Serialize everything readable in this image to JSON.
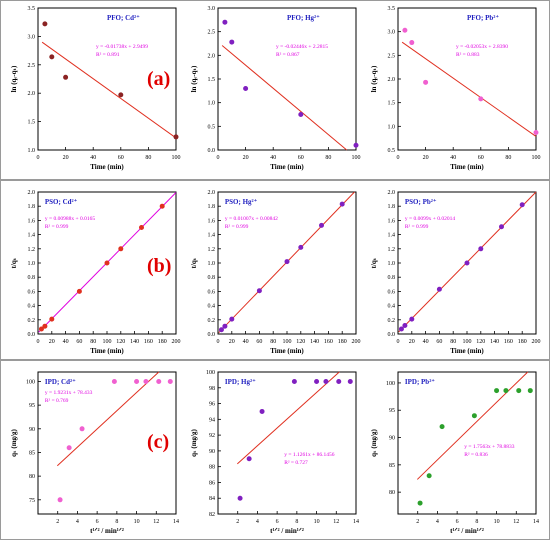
{
  "rows": [
    {
      "label": "(a)"
    },
    {
      "label": "(b)"
    },
    {
      "label": "(c)"
    }
  ],
  "chart_data": [
    {
      "type": "scatter",
      "row": 0,
      "col": 0,
      "title": "PFO; Cd²⁺",
      "xlabel": "Time (min)",
      "ylabel": "ln (qₑ-qₜ)",
      "xlim": [
        0,
        100
      ],
      "ylim": [
        1.0,
        3.5
      ],
      "xticks": [
        0,
        20,
        40,
        60,
        80,
        100
      ],
      "yticks": [
        1.0,
        1.5,
        2.0,
        2.5,
        3.0,
        3.5
      ],
      "x": [
        5,
        10,
        20,
        60,
        100
      ],
      "y": [
        3.22,
        2.64,
        2.28,
        1.97,
        1.23
      ],
      "fit": {
        "slope": -0.01738,
        "intercept": 2.9499
      },
      "equation": "y = -0.01738x + 2.9499",
      "r2": "R² = 0.891",
      "marker_color": "#8b2323",
      "text_color": "#e000e0",
      "fit_color": "#e03020",
      "title_color": "#2020c0"
    },
    {
      "type": "scatter",
      "row": 0,
      "col": 1,
      "title": "PFO; Hg²⁺",
      "xlabel": "Time (min)",
      "ylabel": "ln (qₑ-qₜ)",
      "xlim": [
        0,
        100
      ],
      "ylim": [
        0.0,
        3.0
      ],
      "xticks": [
        0,
        20,
        40,
        60,
        80,
        100
      ],
      "yticks": [
        0.0,
        0.5,
        1.0,
        1.5,
        2.0,
        2.5,
        3.0
      ],
      "x": [
        5,
        10,
        20,
        60,
        100
      ],
      "y": [
        2.7,
        2.28,
        1.3,
        0.75,
        0.1
      ],
      "fit": {
        "slope": -0.02446,
        "intercept": 2.2815
      },
      "equation": "y = -0.02446x + 2.2815",
      "r2": "R² = 0.867",
      "marker_color": "#8020c0",
      "text_color": "#e000e0",
      "fit_color": "#e03020",
      "title_color": "#2020c0"
    },
    {
      "type": "scatter",
      "row": 0,
      "col": 2,
      "title": "PFO; Pb²⁺",
      "xlabel": "Time (min)",
      "ylabel": "ln (qₑ-qₜ)",
      "xlim": [
        0,
        100
      ],
      "ylim": [
        0.5,
        3.5
      ],
      "xticks": [
        0,
        20,
        40,
        60,
        80,
        100
      ],
      "yticks": [
        0.5,
        1.0,
        1.5,
        2.0,
        2.5,
        3.0,
        3.5
      ],
      "x": [
        5,
        10,
        20,
        60,
        100
      ],
      "y": [
        3.03,
        2.77,
        1.93,
        1.58,
        0.87
      ],
      "fit": {
        "slope": -0.02053,
        "intercept": 2.839
      },
      "equation": "y = -0.02053x + 2.8390",
      "r2": "R² = 0.883",
      "marker_color": "#f060d0",
      "text_color": "#e000e0",
      "fit_color": "#e03020",
      "title_color": "#2020c0"
    },
    {
      "type": "scatter",
      "row": 1,
      "col": 0,
      "title": "PSO; Cd²⁺",
      "xlabel": "Time (min)",
      "ylabel": "t/qₜ",
      "xlim": [
        0,
        200
      ],
      "ylim": [
        0.0,
        2.0
      ],
      "xticks": [
        0,
        20,
        40,
        60,
        80,
        100,
        120,
        140,
        160,
        180,
        200
      ],
      "yticks": [
        0.0,
        0.2,
        0.4,
        0.6,
        0.8,
        1.0,
        1.2,
        1.4,
        1.6,
        1.8,
        2.0
      ],
      "x": [
        5,
        10,
        20,
        60,
        100,
        120,
        150,
        180
      ],
      "y": [
        0.07,
        0.11,
        0.21,
        0.6,
        1.0,
        1.2,
        1.5,
        1.8
      ],
      "fit": {
        "slope": 0.00988,
        "intercept": 0.0165
      },
      "equation": "y = 0.00988x + 0.0165",
      "r2": "R² = 0.999",
      "marker_color": "#e03020",
      "text_color": "#e000e0",
      "fit_color": "#e000e0",
      "title_color": "#2020c0"
    },
    {
      "type": "scatter",
      "row": 1,
      "col": 1,
      "title": "PSO; Hg²⁺",
      "xlabel": "Time (min)",
      "ylabel": "t/qₜ",
      "xlim": [
        0,
        200
      ],
      "ylim": [
        0.0,
        2.0
      ],
      "xticks": [
        0,
        20,
        40,
        60,
        80,
        100,
        120,
        140,
        160,
        180,
        200
      ],
      "yticks": [
        0.0,
        0.2,
        0.4,
        0.6,
        0.8,
        1.0,
        1.2,
        1.4,
        1.6,
        1.8,
        2.0
      ],
      "x": [
        5,
        10,
        20,
        60,
        100,
        120,
        150,
        180
      ],
      "y": [
        0.06,
        0.11,
        0.21,
        0.61,
        1.02,
        1.22,
        1.53,
        1.83
      ],
      "fit": {
        "slope": 0.01007,
        "intercept": 0.00842
      },
      "equation": "y = 0.01007x + 0.00842",
      "r2": "R² = 0.999",
      "marker_color": "#8020c0",
      "text_color": "#e000e0",
      "fit_color": "#e03020",
      "title_color": "#2020c0"
    },
    {
      "type": "scatter",
      "row": 1,
      "col": 2,
      "title": "PSO; Pb²⁺",
      "xlabel": "Time (min)",
      "ylabel": "t/qₜ",
      "xlim": [
        0,
        200
      ],
      "ylim": [
        0.0,
        2.0
      ],
      "xticks": [
        0,
        20,
        40,
        60,
        80,
        100,
        120,
        140,
        160,
        180,
        200
      ],
      "yticks": [
        0.0,
        0.2,
        0.4,
        0.6,
        0.8,
        1.0,
        1.2,
        1.4,
        1.6,
        1.8,
        2.0
      ],
      "x": [
        5,
        10,
        20,
        60,
        100,
        120,
        150,
        180
      ],
      "y": [
        0.07,
        0.12,
        0.21,
        0.63,
        1.0,
        1.2,
        1.51,
        1.82
      ],
      "fit": {
        "slope": 0.0099,
        "intercept": 0.02014
      },
      "equation": "y = 0.0099x + 0.02014",
      "r2": "R² = 0.999",
      "marker_color": "#8020c0",
      "text_color": "#e000e0",
      "fit_color": "#e03020",
      "title_color": "#2020c0"
    },
    {
      "type": "scatter",
      "row": 2,
      "col": 0,
      "title": "IPD; Cd²⁺",
      "xlabel": "t¹ᐟ² / min¹ᐟ²",
      "ylabel": "qₜ (mg/g)",
      "xlim": [
        0,
        14
      ],
      "ylim": [
        72,
        102
      ],
      "xticks": [
        2,
        4,
        6,
        8,
        10,
        12,
        14
      ],
      "yticks": [
        75,
        80,
        85,
        90,
        95,
        100
      ],
      "x": [
        2.24,
        3.16,
        4.47,
        7.75,
        10.0,
        10.95,
        12.25,
        13.42
      ],
      "y": [
        75,
        86,
        90,
        100,
        100,
        100,
        100,
        100
      ],
      "fit": {
        "slope": 1.9231,
        "intercept": 78.433
      },
      "equation": "y = 1.9231x + 78.433",
      "r2": "R² = 0.769",
      "marker_color": "#f060d0",
      "text_color": "#e000e0",
      "fit_color": "#e03020",
      "title_color": "#2020c0"
    },
    {
      "type": "scatter",
      "row": 2,
      "col": 1,
      "title": "IPD; Hg²⁺",
      "xlabel": "t¹ᐟ² / min¹ᐟ²",
      "ylabel": "qₜ (mg/g)",
      "xlim": [
        0,
        14
      ],
      "ylim": [
        82,
        100
      ],
      "xticks": [
        2,
        4,
        6,
        8,
        10,
        12,
        14
      ],
      "yticks": [
        82,
        84,
        86,
        88,
        90,
        92,
        94,
        96,
        98,
        100
      ],
      "x": [
        2.24,
        3.16,
        4.47,
        7.75,
        10.0,
        10.95,
        12.25,
        13.42
      ],
      "y": [
        84,
        89,
        95,
        98.8,
        98.8,
        98.8,
        98.8,
        98.8
      ],
      "fit": {
        "slope": 1.1261,
        "intercept": 86.1456
      },
      "equation": "y = 1.1261x + 86.1456",
      "r2": "R² = 0.727",
      "marker_color": "#8020c0",
      "text_color": "#e000e0",
      "fit_color": "#e03020",
      "title_color": "#2020c0"
    },
    {
      "type": "scatter",
      "row": 2,
      "col": 2,
      "title": "IPD; Pb²⁺",
      "xlabel": "t¹ᐟ² / min¹ᐟ²",
      "ylabel": "qₜ (mg/g)",
      "xlim": [
        0,
        14
      ],
      "ylim": [
        76,
        102
      ],
      "xticks": [
        2,
        4,
        6,
        8,
        10,
        12,
        14
      ],
      "yticks": [
        80,
        85,
        90,
        95,
        100
      ],
      "x": [
        2.24,
        3.16,
        4.47,
        7.75,
        10.0,
        10.95,
        12.25,
        13.42
      ],
      "y": [
        78,
        83,
        92,
        94,
        98.6,
        98.6,
        98.6,
        98.6
      ],
      "fit": {
        "slope": 1.7563,
        "intercept": 78.8833
      },
      "equation": "y = 1.7563x + 78.8833",
      "r2": "R² = 0.836",
      "marker_color": "#2ca02c",
      "text_color": "#e000e0",
      "fit_color": "#e03020",
      "title_color": "#2020c0"
    }
  ]
}
